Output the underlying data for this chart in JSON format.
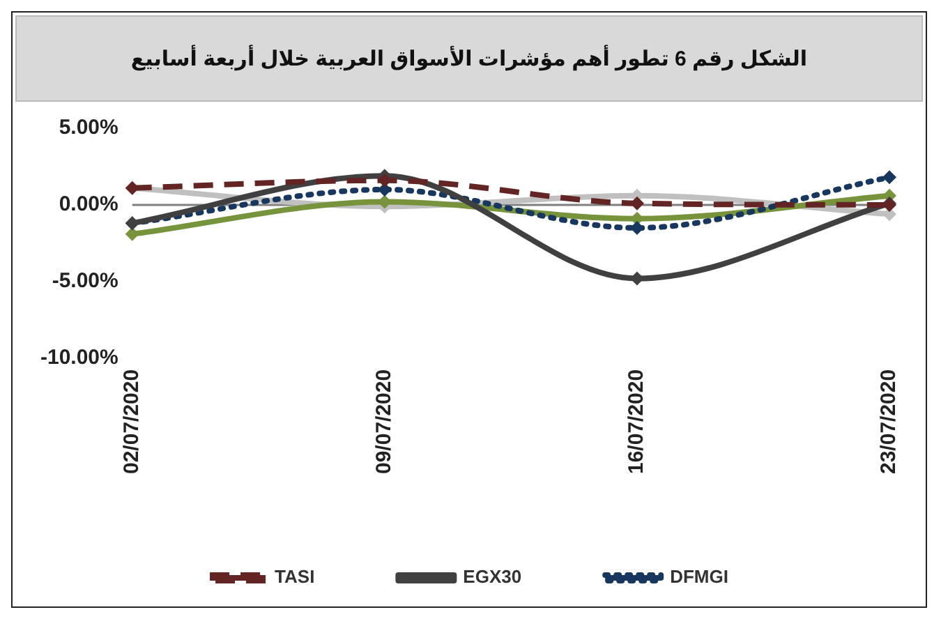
{
  "chart_data": {
    "type": "line",
    "title": "الشكل رقم 6 تطور أهم مؤشرات الأسواق العربية خلال أربعة أسابيع",
    "categories": [
      "02/07/2020",
      "09/07/2020",
      "16/07/2020",
      "23/07/2020"
    ],
    "series": [
      {
        "name": "TASI",
        "color": "#632523",
        "line_style": "dashed",
        "values": [
          1.1,
          1.6,
          0.1,
          0.0
        ]
      },
      {
        "name": "EGX30",
        "color": "#404040",
        "line_style": "solid",
        "values": [
          -1.2,
          1.9,
          -4.8,
          0.1
        ]
      },
      {
        "name": "DFMGI",
        "color": "#17375e",
        "line_style": "dotted",
        "values": [
          -1.2,
          1.0,
          -1.5,
          1.8
        ]
      },
      {
        "color": "#77933c",
        "line_style": "solid",
        "values": [
          -1.9,
          0.2,
          -0.9,
          0.6
        ]
      },
      {
        "color": "#c0c0c0",
        "line_style": "solid",
        "values": [
          1.1,
          -0.1,
          0.6,
          -0.6
        ]
      }
    ],
    "ylim": [
      -10,
      5
    ],
    "yticks": [
      {
        "value": -10,
        "label": "-10.00%"
      },
      {
        "value": -5,
        "label": "-5.00%"
      },
      {
        "value": 0,
        "label": "0.00%"
      },
      {
        "value": 5,
        "label": "5.00%"
      }
    ],
    "ref_lines": [
      {
        "axis": "y",
        "value": 0,
        "color": "#7f7f7f",
        "line_style": "solid"
      }
    ],
    "marker": "diamond",
    "grid": false,
    "legend": "bottom"
  }
}
